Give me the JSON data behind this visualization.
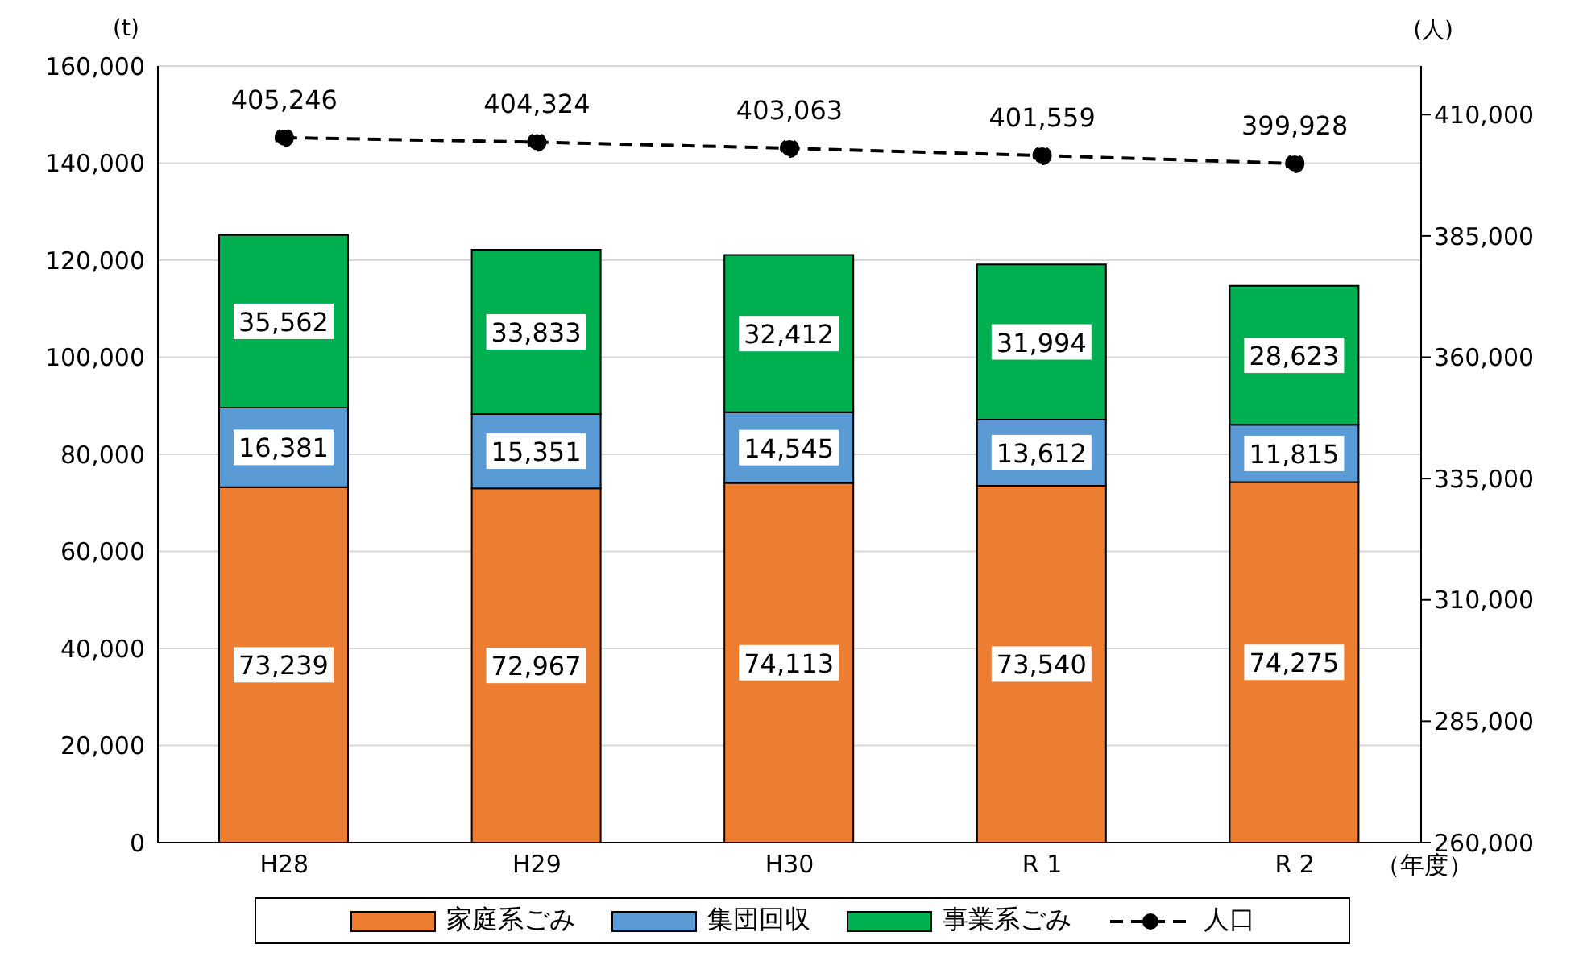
{
  "chart_data": {
    "type": "bar",
    "stacked": true,
    "ylabel": "(t)",
    "y2label": "(人)",
    "xlabel": "（年度）",
    "categories": [
      "H28",
      "H29",
      "H30",
      "R 1",
      "R 2"
    ],
    "series": [
      {
        "name": "家庭系ごみ",
        "color": "#ed7d31",
        "values": [
          73239,
          72967,
          74113,
          73540,
          74275
        ],
        "value_labels": [
          "73,239",
          "72,967",
          "74,113",
          "73,540",
          "74,275"
        ]
      },
      {
        "name": "集団回収",
        "color": "#5b9bd5",
        "values": [
          16381,
          15351,
          14545,
          13612,
          11815
        ],
        "value_labels": [
          "16,381",
          "15,351",
          "14,545",
          "13,612",
          "11,815"
        ]
      },
      {
        "name": "事業系ごみ",
        "color": "#00b050",
        "values": [
          35562,
          33833,
          32412,
          31994,
          28623
        ],
        "value_labels": [
          "35,562",
          "33,833",
          "32,412",
          "31,994",
          "28,623"
        ]
      },
      {
        "name": "人口",
        "type": "line",
        "axis": "y2",
        "color": "#000000",
        "marker": "circle",
        "line_style": "dashed",
        "values": [
          405246,
          404324,
          403063,
          401559,
          399928
        ],
        "value_labels": [
          "405,246",
          "404,324",
          "403,063",
          "401,559",
          "399,928"
        ]
      }
    ],
    "ylim": [
      0,
      160000
    ],
    "yticks": [
      0,
      {
        "value": 20000,
        "label": "20,000"
      },
      {
        "value": 40000,
        "label": "40,000"
      },
      {
        "value": 60000,
        "label": "60,000"
      },
      {
        "value": 80000,
        "label": "80,000"
      },
      {
        "value": 100000,
        "label": "100,000"
      },
      {
        "value": 120000,
        "label": "120,000"
      },
      {
        "value": 140000,
        "label": "140,000"
      },
      {
        "value": 160000,
        "label": "160,000"
      }
    ],
    "y2lim": [
      260000,
      420000
    ],
    "y2ticks": [
      {
        "value": 260000,
        "label": "260,000"
      },
      {
        "value": 285000,
        "label": "285,000"
      },
      {
        "value": 310000,
        "label": "310,000"
      },
      {
        "value": 335000,
        "label": "335,000"
      },
      {
        "value": 360000,
        "label": "360,000"
      },
      {
        "value": 385000,
        "label": "385,000"
      },
      {
        "value": 410000,
        "label": "410,000"
      }
    ],
    "grid": "y",
    "legend": "bottom"
  }
}
